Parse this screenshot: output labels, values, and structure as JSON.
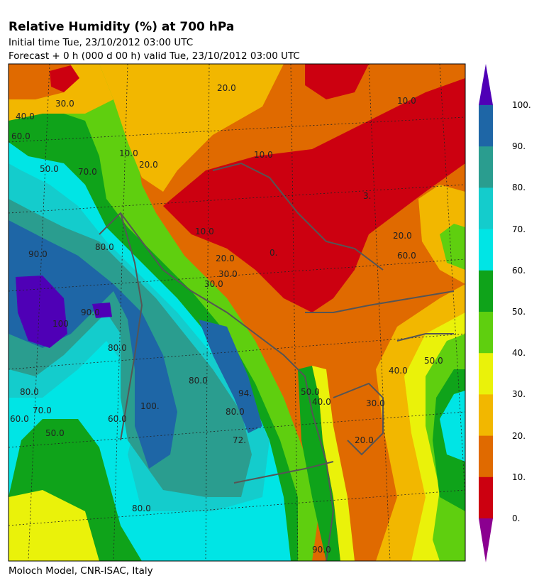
{
  "header": {
    "title": "Relative Humidity (%) at 700 hPa",
    "initial_time": "Initial time  Tue, 23/10/2012  03:00 UTC",
    "forecast": "Forecast  +    0 h  (000 d 00 h)  valid Tue, 23/10/2012 03:00 UTC"
  },
  "footer": {
    "credit": "Moloch Model, CNR-ISAC, Italy"
  },
  "colorbar": {
    "labels": [
      "100.",
      "90.",
      "80.",
      "70.",
      "60.",
      "50.",
      "40.",
      "30.",
      "20.",
      "10.",
      "0."
    ],
    "colors": [
      "#4f00b6",
      "#1e66a6",
      "#2a9d8f",
      "#14cccc",
      "#00e5e5",
      "#0fa31a",
      "#5fcf0f",
      "#eaf20a",
      "#f2b700",
      "#e06a00",
      "#cc0010",
      "#8b0090"
    ]
  },
  "contour_labels": [
    "30.0",
    "40.0",
    "60.0",
    "50.0",
    "70.0",
    "20.0",
    "10.0",
    "20.0",
    "10.0",
    "10.0",
    "3.",
    "20.0",
    "10.0",
    "0.",
    "20.0",
    "30.0",
    "80.0",
    "90.0",
    "100",
    "90.0",
    "80.0",
    "100.",
    "80.0",
    "94.",
    "80.0",
    "72.",
    "50.0",
    "40.0",
    "30.0",
    "20.0",
    "60.0",
    "70.0",
    "80.0",
    "60.0",
    "50.0",
    "80.0",
    "60.0",
    "50.0",
    "40.0",
    "30.0",
    "90.0"
  ]
}
